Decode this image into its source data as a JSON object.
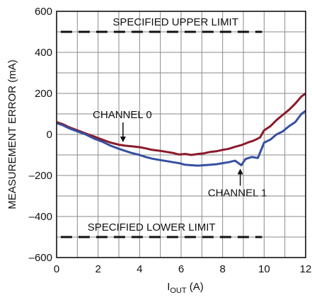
{
  "chart_data": {
    "type": "line",
    "xlabel": "I",
    "xlabel_sub": "OUT",
    "xlabel_unit": " (A)",
    "ylabel": "MEASUREMENT ERROR (mA)",
    "xlim": [
      0,
      12
    ],
    "ylim": [
      -600,
      600
    ],
    "x_ticks": [
      0,
      2,
      4,
      6,
      8,
      10,
      12
    ],
    "y_ticks": [
      600,
      400,
      200,
      0,
      -200,
      -400,
      -600
    ],
    "y_tick_labels": [
      "600",
      "400",
      "200",
      "0",
      "–200",
      "–400",
      "–600"
    ],
    "grid": true,
    "reference_lines": [
      {
        "label": "SPECIFIED UPPER LIMIT",
        "y": 500,
        "x_range": [
          0.2,
          9.9
        ]
      },
      {
        "label": "SPECIFIED LOWER LIMIT",
        "y": -500,
        "x_range": [
          0.2,
          9.9
        ]
      }
    ],
    "series": [
      {
        "name": "CHANNEL 0",
        "color": "#8b1a2b",
        "x": [
          0,
          0.3,
          0.6,
          1.0,
          1.4,
          1.8,
          2.2,
          2.6,
          3.0,
          3.3,
          3.6,
          4.0,
          4.3,
          4.6,
          5.0,
          5.3,
          5.6,
          5.9,
          6.2,
          6.5,
          6.8,
          7.1,
          7.4,
          7.7,
          8.0,
          8.3,
          8.6,
          8.9,
          9.2,
          9.5,
          9.8,
          10.0,
          10.3,
          10.6,
          10.9,
          11.2,
          11.5,
          11.8,
          12.0
        ],
        "values": [
          60,
          50,
          35,
          20,
          5,
          -10,
          -25,
          -40,
          -50,
          -55,
          -58,
          -62,
          -68,
          -75,
          -80,
          -85,
          -90,
          -98,
          -95,
          -100,
          -95,
          -92,
          -85,
          -82,
          -75,
          -70,
          -60,
          -52,
          -40,
          -30,
          -15,
          20,
          40,
          70,
          95,
          120,
          150,
          185,
          200
        ]
      },
      {
        "name": "CHANNEL 1",
        "color": "#3650a0",
        "x": [
          0,
          0.3,
          0.6,
          1.0,
          1.4,
          1.8,
          2.2,
          2.6,
          3.0,
          3.3,
          3.6,
          4.0,
          4.3,
          4.6,
          5.0,
          5.3,
          5.6,
          5.9,
          6.2,
          6.5,
          6.8,
          7.1,
          7.4,
          7.7,
          8.0,
          8.3,
          8.6,
          8.9,
          9.1,
          9.4,
          9.7,
          10.0,
          10.3,
          10.6,
          10.9,
          11.2,
          11.5,
          11.8,
          12.0
        ],
        "values": [
          55,
          45,
          30,
          15,
          0,
          -20,
          -35,
          -55,
          -70,
          -80,
          -90,
          -100,
          -110,
          -118,
          -125,
          -130,
          -135,
          -140,
          -148,
          -150,
          -152,
          -150,
          -148,
          -145,
          -140,
          -135,
          -128,
          -150,
          -120,
          -110,
          -115,
          -40,
          -25,
          0,
          15,
          40,
          60,
          100,
          115
        ]
      }
    ],
    "annotations": [
      {
        "text": "CHANNEL 0",
        "x": 3.2,
        "y": -45
      },
      {
        "text": "CHANNEL 1",
        "x": 8.85,
        "y": -160
      }
    ]
  }
}
